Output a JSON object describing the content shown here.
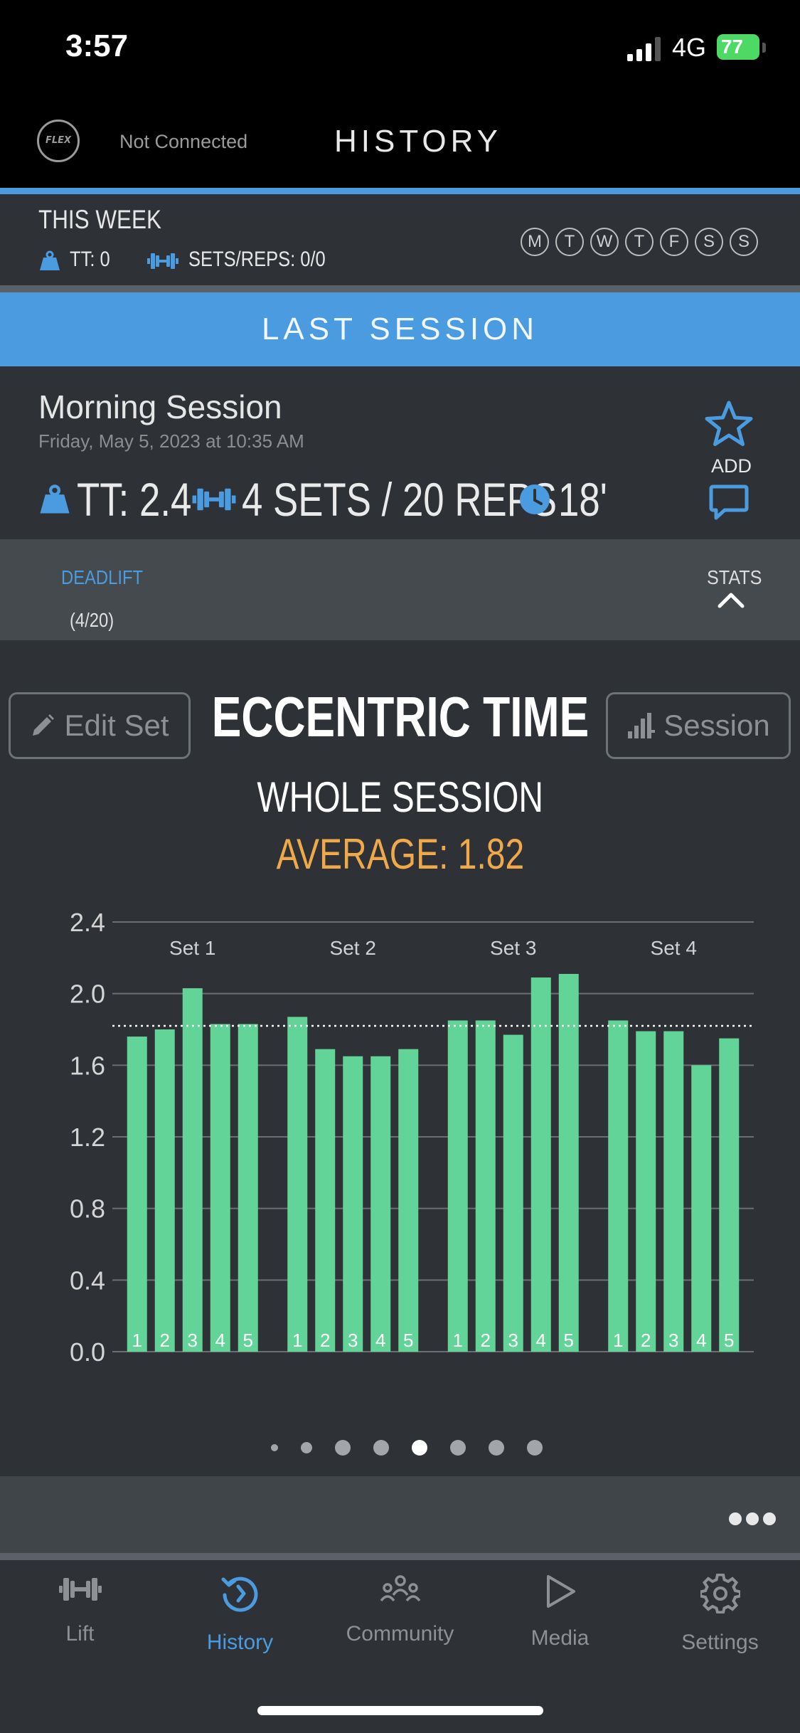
{
  "status_bar": {
    "time": "3:57",
    "network": "4G",
    "battery": "77"
  },
  "header": {
    "logo_text": "FLEX",
    "connection": "Not Connected",
    "title": "HISTORY"
  },
  "this_week": {
    "title": "THIS WEEK",
    "tt": "TT: 0",
    "sets_reps": "SETS/REPS: 0/0",
    "days": [
      "M",
      "T",
      "W",
      "T",
      "F",
      "S",
      "S"
    ]
  },
  "last_session": {
    "label": "LAST SESSION",
    "name": "Morning Session",
    "date": "Friday, May 5, 2023 at 10:35 AM",
    "add_label": "ADD",
    "tt": "TT: 2.4",
    "sets_reps": "4 SETS / 20 REPS",
    "duration": "18'"
  },
  "exercise": {
    "name": "DEADLIFT",
    "count": "(4/20)",
    "stats_label": "STATS"
  },
  "controls": {
    "edit_set": "Edit Set",
    "session": "Session"
  },
  "chart_header": {
    "title": "ECCENTRIC TIME",
    "subtitle": "WHOLE SESSION",
    "average": "AVERAGE: 1.82"
  },
  "chart_data": {
    "type": "bar",
    "title": "ECCENTRIC TIME",
    "subtitle": "WHOLE SESSION",
    "ylim": [
      0,
      2.4
    ],
    "yticks": [
      "0.0",
      "0.4",
      "0.8",
      "1.2",
      "1.6",
      "2.0",
      "2.4"
    ],
    "grid": true,
    "average": 1.82,
    "groups": [
      {
        "name": "Set 1",
        "reps": [
          "1",
          "2",
          "3",
          "4",
          "5"
        ],
        "values": [
          1.76,
          1.8,
          2.03,
          1.83,
          1.83
        ]
      },
      {
        "name": "Set 2",
        "reps": [
          "1",
          "2",
          "3",
          "4",
          "5"
        ],
        "values": [
          1.87,
          1.69,
          1.65,
          1.65,
          1.69
        ]
      },
      {
        "name": "Set 3",
        "reps": [
          "1",
          "2",
          "3",
          "4",
          "5"
        ],
        "values": [
          1.85,
          1.85,
          1.77,
          2.09,
          2.11
        ]
      },
      {
        "name": "Set 4",
        "reps": [
          "1",
          "2",
          "3",
          "4",
          "5"
        ],
        "values": [
          1.85,
          1.79,
          1.79,
          1.6,
          1.75
        ]
      }
    ],
    "bar_color": "#62d497",
    "average_line_color": "#ffffff"
  },
  "pager": {
    "count": 8,
    "active_index": 4
  },
  "tabs": [
    {
      "label": "Lift",
      "icon": "dumbbell-icon"
    },
    {
      "label": "History",
      "icon": "history-icon"
    },
    {
      "label": "Community",
      "icon": "community-icon"
    },
    {
      "label": "Media",
      "icon": "play-icon"
    },
    {
      "label": "Settings",
      "icon": "gear-icon"
    }
  ],
  "active_tab": "History",
  "colors": {
    "accent": "#4a9be0",
    "average": "#f0a94a",
    "bars": "#62d497"
  }
}
